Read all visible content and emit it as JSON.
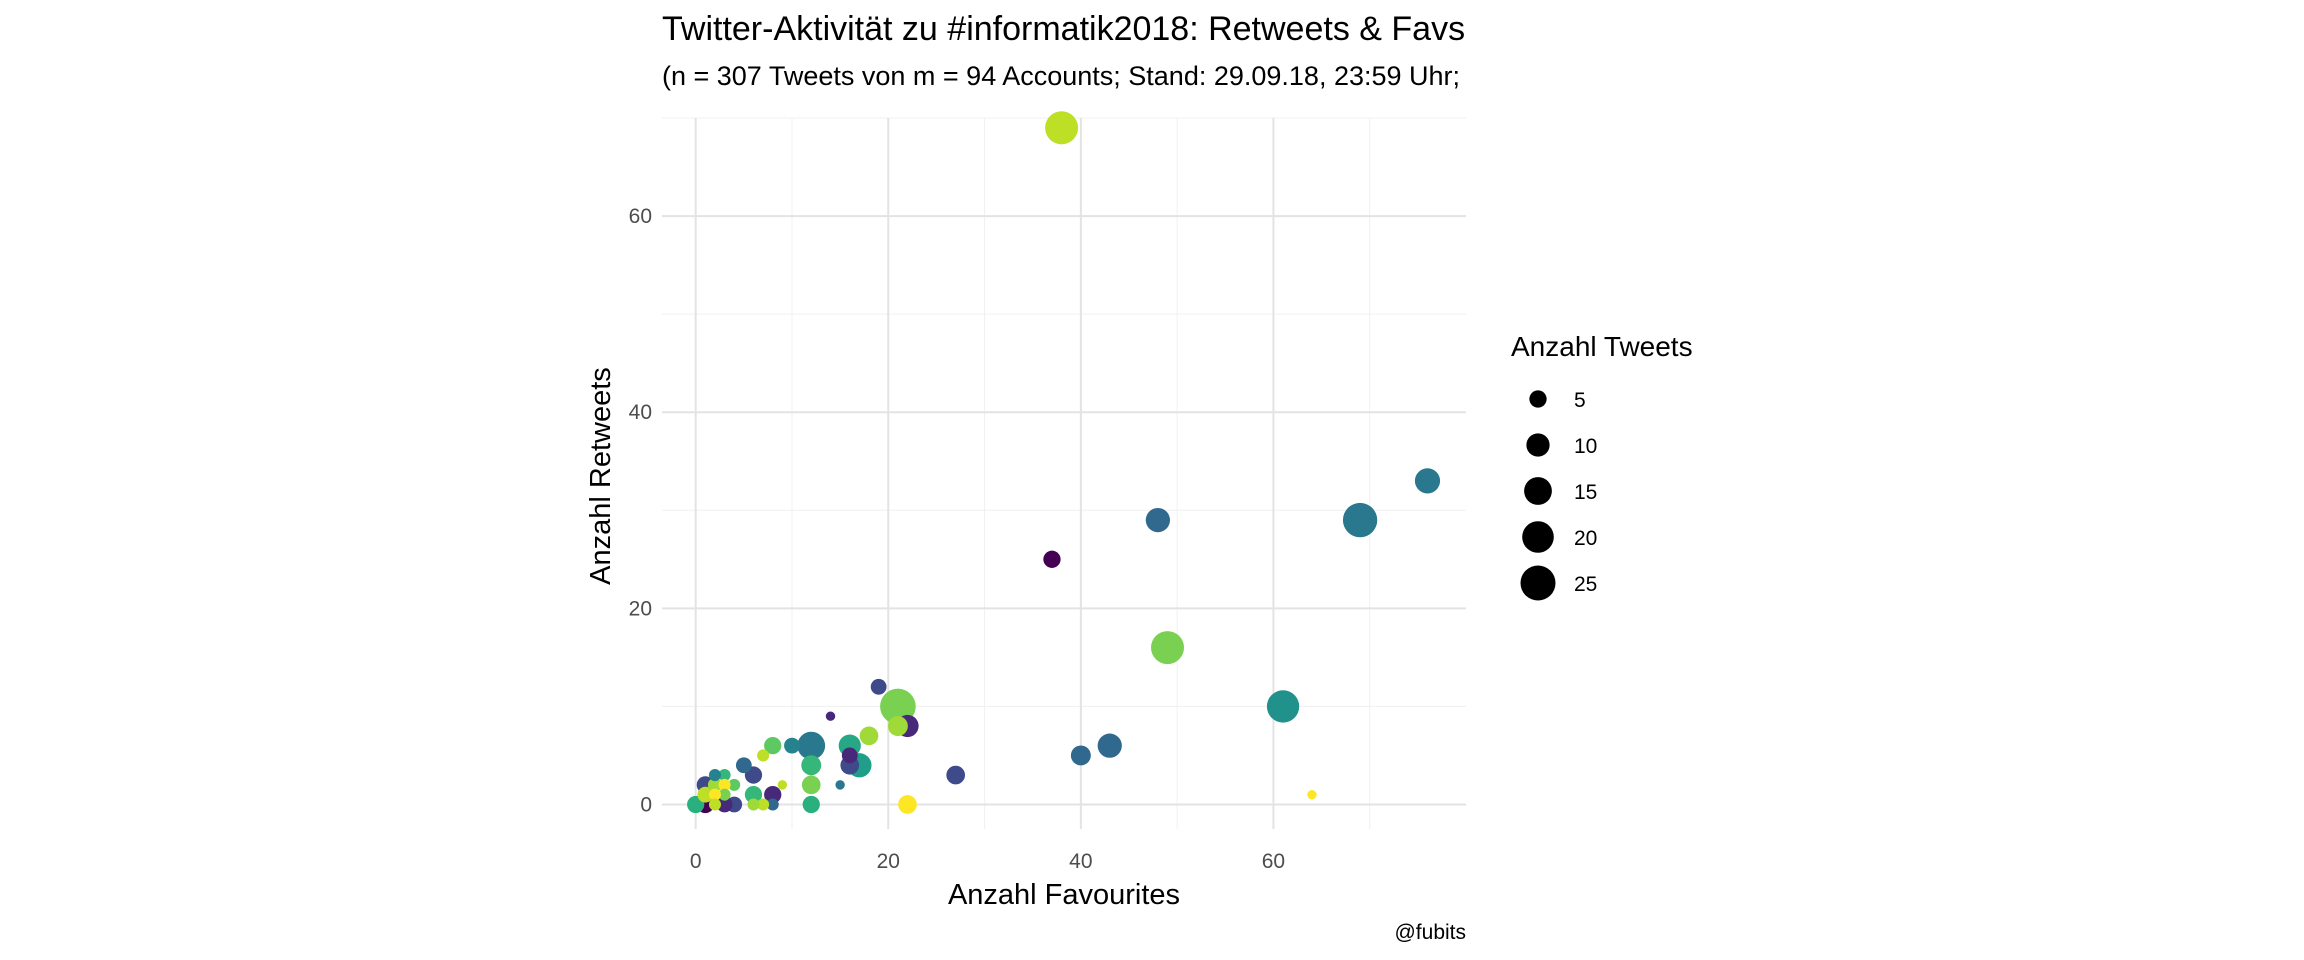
{
  "chart_data": {
    "type": "scatter",
    "title": "Twitter-Aktivität zu #informatik2018: Retweets & Favs",
    "subtitle": "(n = 307 Tweets von m = 94 Accounts; Stand: 29.09.18, 23:59 Uhr;",
    "xlabel": "Anzahl Favourites",
    "ylabel": "Anzahl Retweets",
    "caption": "@fubits",
    "xlim": [
      -3.5,
      80
    ],
    "ylim": [
      -2.5,
      70
    ],
    "xticks": [
      0,
      20,
      40,
      60
    ],
    "yticks": [
      0,
      20,
      40,
      60
    ],
    "grid": true,
    "legend": {
      "title": "Anzahl Tweets",
      "position": "right",
      "sizes": [
        5,
        10,
        15,
        20,
        25
      ],
      "labels": [
        "5",
        "10",
        "15",
        "20",
        "25"
      ]
    },
    "points": [
      {
        "x": 38,
        "y": 69,
        "n": 22,
        "color": "#bddf26"
      },
      {
        "x": 76,
        "y": 33,
        "n": 12,
        "color": "#2a788e"
      },
      {
        "x": 69,
        "y": 29,
        "n": 24,
        "color": "#2a788e"
      },
      {
        "x": 48,
        "y": 29,
        "n": 11,
        "color": "#31688e"
      },
      {
        "x": 37,
        "y": 25,
        "n": 5,
        "color": "#440154"
      },
      {
        "x": 49,
        "y": 16,
        "n": 22,
        "color": "#7ad151"
      },
      {
        "x": 61,
        "y": 10,
        "n": 21,
        "color": "#21918c"
      },
      {
        "x": 64,
        "y": 1,
        "n": 1,
        "color": "#fde725"
      },
      {
        "x": 43,
        "y": 6,
        "n": 11,
        "color": "#31688e"
      },
      {
        "x": 40,
        "y": 5,
        "n": 7,
        "color": "#31688e"
      },
      {
        "x": 27,
        "y": 3,
        "n": 6,
        "color": "#3e4a89"
      },
      {
        "x": 22,
        "y": 0,
        "n": 6,
        "color": "#fde725"
      },
      {
        "x": 22,
        "y": 8,
        "n": 9,
        "color": "#482878"
      },
      {
        "x": 21,
        "y": 10,
        "n": 26,
        "color": "#7ad151"
      },
      {
        "x": 21,
        "y": 8,
        "n": 7,
        "color": "#a0da39"
      },
      {
        "x": 18,
        "y": 7,
        "n": 6,
        "color": "#a0da39"
      },
      {
        "x": 19,
        "y": 12,
        "n": 4,
        "color": "#3e4a89"
      },
      {
        "x": 17,
        "y": 4,
        "n": 11,
        "color": "#1f9e89"
      },
      {
        "x": 16,
        "y": 6,
        "n": 9,
        "color": "#26a785"
      },
      {
        "x": 16,
        "y": 4,
        "n": 6,
        "color": "#3e4a89"
      },
      {
        "x": 16,
        "y": 5,
        "n": 4,
        "color": "#482878"
      },
      {
        "x": 15,
        "y": 2,
        "n": 1,
        "color": "#2a788e"
      },
      {
        "x": 14,
        "y": 9,
        "n": 1,
        "color": "#482878"
      },
      {
        "x": 12,
        "y": 6,
        "n": 15,
        "color": "#2a788e"
      },
      {
        "x": 12,
        "y": 4,
        "n": 7,
        "color": "#35b779"
      },
      {
        "x": 12,
        "y": 2,
        "n": 6,
        "color": "#7ad151"
      },
      {
        "x": 12,
        "y": 0,
        "n": 5,
        "color": "#2ab07f"
      },
      {
        "x": 10,
        "y": 6,
        "n": 4,
        "color": "#26828e"
      },
      {
        "x": 9,
        "y": 2,
        "n": 1,
        "color": "#bddf26"
      },
      {
        "x": 8,
        "y": 6,
        "n": 5,
        "color": "#5ec962"
      },
      {
        "x": 8,
        "y": 1,
        "n": 5,
        "color": "#482878"
      },
      {
        "x": 8,
        "y": 0,
        "n": 2,
        "color": "#31688e"
      },
      {
        "x": 7,
        "y": 5,
        "n": 2,
        "color": "#bddf26"
      },
      {
        "x": 7,
        "y": 0,
        "n": 2,
        "color": "#bddf26"
      },
      {
        "x": 6,
        "y": 3,
        "n": 5,
        "color": "#3e4a89"
      },
      {
        "x": 6,
        "y": 1,
        "n": 5,
        "color": "#35b779"
      },
      {
        "x": 6,
        "y": 0,
        "n": 2,
        "color": "#a0da39"
      },
      {
        "x": 5,
        "y": 4,
        "n": 4,
        "color": "#31688e"
      },
      {
        "x": 4,
        "y": 2,
        "n": 2,
        "color": "#5ec962"
      },
      {
        "x": 4,
        "y": 0,
        "n": 4,
        "color": "#3e4a89"
      },
      {
        "x": 3,
        "y": 3,
        "n": 2,
        "color": "#35b779"
      },
      {
        "x": 3,
        "y": 2,
        "n": 2,
        "color": "#fde725"
      },
      {
        "x": 3,
        "y": 1,
        "n": 2,
        "color": "#7ad151"
      },
      {
        "x": 3,
        "y": 0,
        "n": 4,
        "color": "#482878"
      },
      {
        "x": 2,
        "y": 3,
        "n": 2,
        "color": "#26828e"
      },
      {
        "x": 2,
        "y": 2,
        "n": 3,
        "color": "#a0da39"
      },
      {
        "x": 2,
        "y": 1,
        "n": 2,
        "color": "#fde725"
      },
      {
        "x": 2,
        "y": 0,
        "n": 2,
        "color": "#bddf26"
      },
      {
        "x": 1,
        "y": 2,
        "n": 5,
        "color": "#3e4a89"
      },
      {
        "x": 1,
        "y": 1,
        "n": 4,
        "color": "#bddf26"
      },
      {
        "x": 1,
        "y": 0,
        "n": 5,
        "color": "#440154"
      },
      {
        "x": 0,
        "y": 0,
        "n": 5,
        "color": "#2ab07f"
      }
    ]
  }
}
